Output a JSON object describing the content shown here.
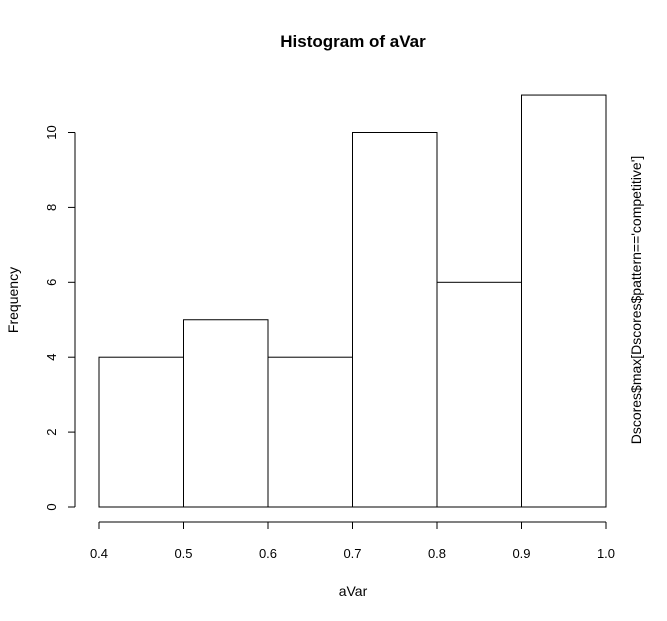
{
  "chart_data": {
    "type": "bar",
    "title": "Histogram of aVar",
    "xlabel": "aVar",
    "ylabel": "Frequency",
    "right_label": "Dscores$max[Dscores$pattern=='competitive']",
    "bins": [
      {
        "start": 0.4,
        "end": 0.5,
        "count": 4
      },
      {
        "start": 0.5,
        "end": 0.6,
        "count": 5
      },
      {
        "start": 0.6,
        "end": 0.7,
        "count": 4
      },
      {
        "start": 0.7,
        "end": 0.8,
        "count": 10
      },
      {
        "start": 0.8,
        "end": 0.9,
        "count": 6
      },
      {
        "start": 0.9,
        "end": 1.0,
        "count": 11
      }
    ],
    "xticks": [
      0.4,
      0.5,
      0.6,
      0.7,
      0.8,
      0.9,
      1.0
    ],
    "xtick_labels": [
      "0.4",
      "0.5",
      "0.6",
      "0.7",
      "0.8",
      "0.9",
      "1.0"
    ],
    "yticks": [
      0,
      2,
      4,
      6,
      8,
      10
    ],
    "ytick_labels": [
      "0",
      "2",
      "4",
      "6",
      "8",
      "10"
    ],
    "xlim": [
      0.4,
      1.0
    ],
    "ylim": [
      0,
      11
    ],
    "grid": false,
    "bar_fill": "#ffffff",
    "bar_stroke": "#000000"
  }
}
